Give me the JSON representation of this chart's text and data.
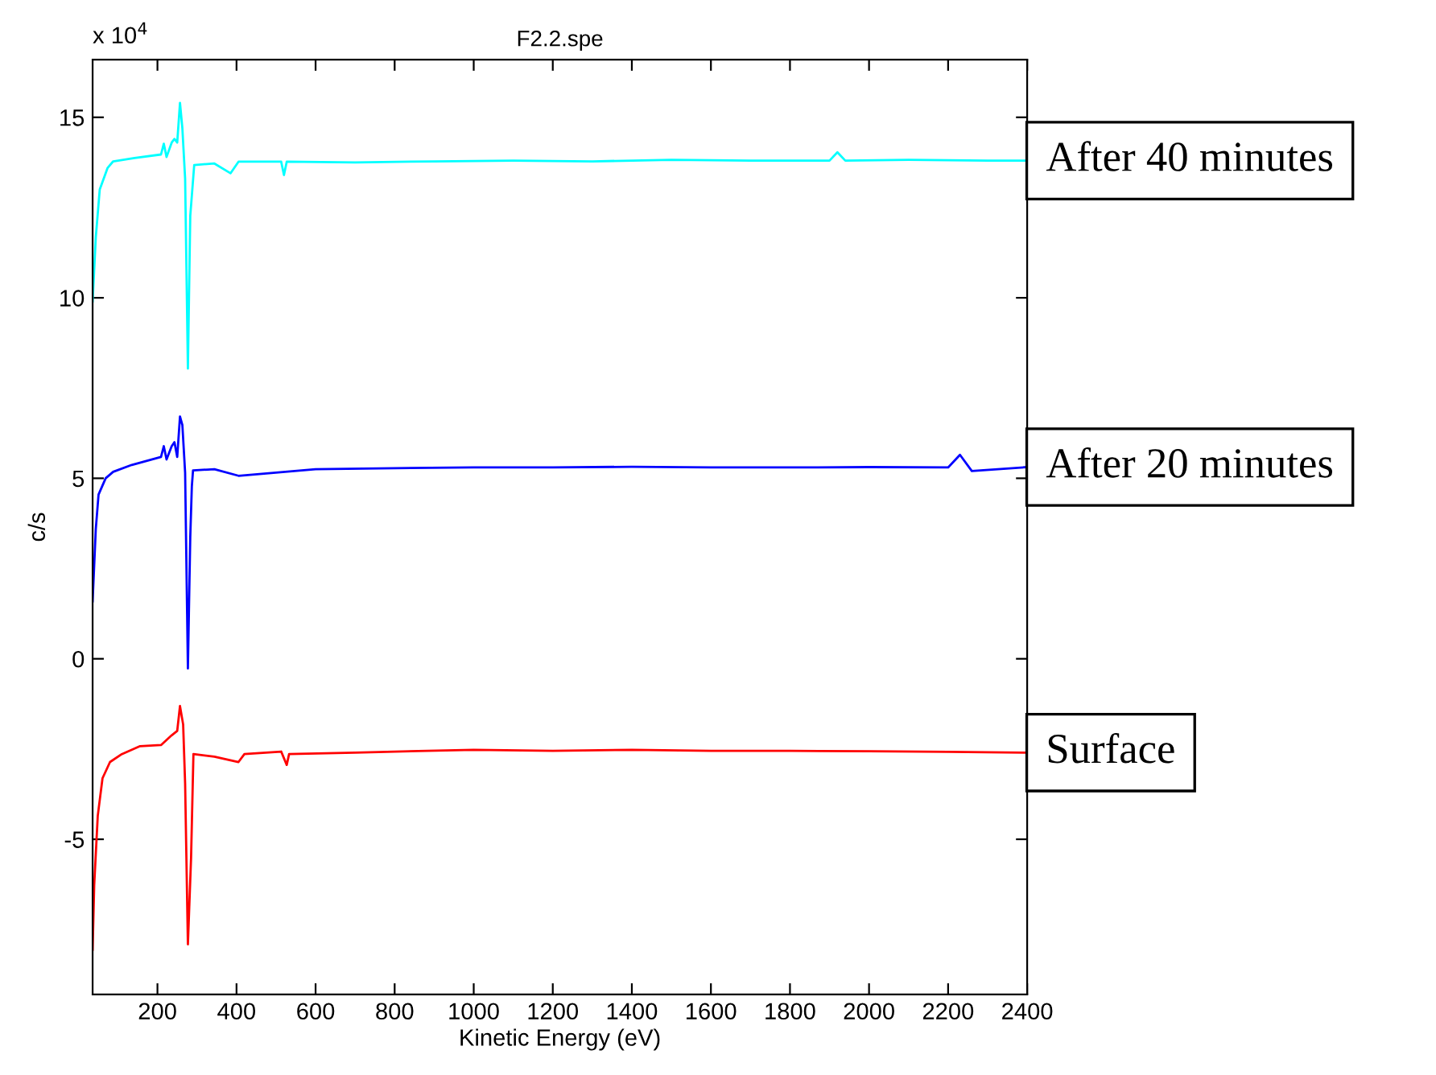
{
  "chart_data": {
    "type": "line",
    "title": "F2.2.spe",
    "xlabel": "Kinetic Energy (eV)",
    "ylabel": "c/s",
    "annotations": [
      "x 10$^{4}$"
    ],
    "xlim": [
      36,
      2400
    ],
    "xticks": [
      200,
      400,
      600,
      800,
      1000,
      1200,
      1400,
      1600,
      1800,
      2000,
      2200,
      2400
    ],
    "ylim": [
      -9.3,
      16.6
    ],
    "yticks": [
      -5,
      0,
      5,
      10,
      15
    ],
    "grid": false,
    "legend": false,
    "marker": "none",
    "line_style": "solid",
    "series": [
      {
        "name": "After 40 minutes",
        "color": "#00ffff",
        "x": [
          36,
          44,
          54,
          74,
          88,
          142,
          209,
          216,
          223,
          236,
          243,
          250,
          257,
          263,
          270,
          277,
          283,
          293,
          344,
          385,
          405,
          513,
          520,
          527,
          700,
          900,
          1100,
          1300,
          1500,
          1700,
          1900,
          1920,
          1940,
          2100,
          2300,
          2400
        ],
        "values": [
          9.9,
          11.67,
          13.0,
          13.6,
          13.78,
          13.87,
          13.97,
          14.27,
          13.9,
          14.3,
          14.4,
          14.3,
          15.4,
          14.7,
          13.3,
          8.04,
          12.27,
          13.68,
          13.72,
          13.45,
          13.77,
          13.77,
          13.4,
          13.77,
          13.75,
          13.78,
          13.8,
          13.78,
          13.82,
          13.8,
          13.8,
          14.03,
          13.8,
          13.82,
          13.8,
          13.8
        ]
      },
      {
        "name": "After 20 minutes",
        "color": "#0000ff",
        "x": [
          36,
          44,
          51,
          69,
          88,
          135,
          209,
          216,
          223,
          236,
          243,
          250,
          257,
          263,
          270,
          277,
          283,
          287,
          290,
          344,
          405,
          600,
          800,
          1000,
          1200,
          1400,
          1600,
          1800,
          2000,
          2200,
          2230,
          2260,
          2400
        ],
        "values": [
          1.59,
          3.59,
          4.55,
          5.0,
          5.18,
          5.37,
          5.59,
          5.89,
          5.52,
          5.89,
          6.0,
          5.59,
          6.71,
          6.48,
          5.15,
          -0.27,
          3.37,
          4.78,
          5.22,
          5.25,
          5.07,
          5.25,
          5.28,
          5.3,
          5.3,
          5.32,
          5.3,
          5.3,
          5.31,
          5.3,
          5.65,
          5.2,
          5.31
        ]
      },
      {
        "name": "Surface",
        "color": "#ff0000",
        "x": [
          36,
          40,
          49,
          61,
          80,
          110,
          156,
          209,
          236,
          250,
          257,
          265,
          270,
          277,
          285,
          291,
          344,
          405,
          420,
          513,
          527,
          533,
          700,
          1000,
          1200,
          1400,
          1600,
          1800,
          2000,
          2200,
          2400
        ],
        "values": [
          -8.06,
          -6.27,
          -4.35,
          -3.31,
          -2.86,
          -2.64,
          -2.42,
          -2.39,
          -2.12,
          -2.0,
          -1.31,
          -1.82,
          -3.46,
          -7.91,
          -5.53,
          -2.64,
          -2.71,
          -2.86,
          -2.64,
          -2.57,
          -2.94,
          -2.64,
          -2.6,
          -2.52,
          -2.55,
          -2.52,
          -2.55,
          -2.55,
          -2.56,
          -2.58,
          -2.6
        ]
      }
    ]
  }
}
